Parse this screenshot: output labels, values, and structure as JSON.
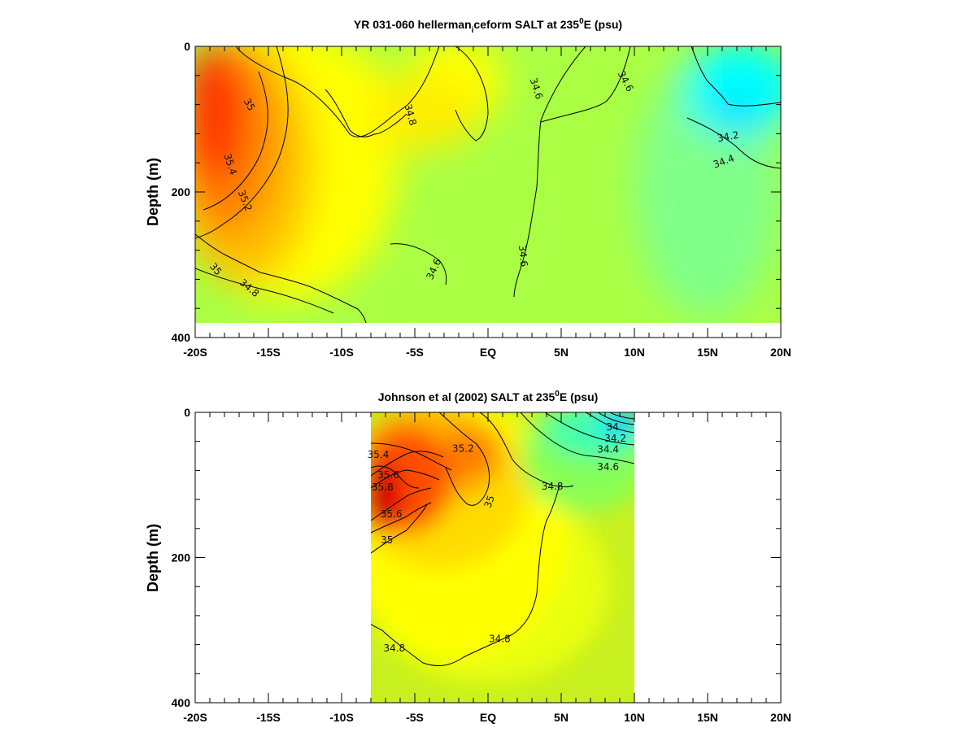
{
  "chart_data": [
    {
      "type": "heatmap",
      "title_main": "YR 031-060 hellerman",
      "title_sub": "i",
      "title_tail": "ceform SALT at 235",
      "title_sup": "0",
      "title_end": "E (psu)",
      "ylabel": "Depth (m)",
      "xlim": [
        -20,
        20
      ],
      "ylim": [
        0,
        400
      ],
      "x_ticks": [
        -20,
        -15,
        -10,
        -5,
        0,
        5,
        10,
        15,
        20
      ],
      "x_tick_labels": [
        "-20S",
        "-15S",
        "-10S",
        "-5S",
        "EQ",
        "5N",
        "10N",
        "15N",
        "20N"
      ],
      "y_ticks": [
        0,
        200,
        400
      ],
      "y_tick_labels": [
        "0",
        "200",
        "400"
      ],
      "data_extent": {
        "x": [
          -20,
          20
        ],
        "depth": [
          0,
          380
        ]
      },
      "color_range": [
        34.0,
        35.8
      ],
      "colors": [
        "#00b4ff",
        "#00ffff",
        "#66ff99",
        "#b0ff40",
        "#ffff00",
        "#ffc800",
        "#ff8000",
        "#ff2000",
        "#d00000"
      ],
      "contour_labels": [
        {
          "x": -16.3,
          "y": 80,
          "text": "35",
          "rot": 60
        },
        {
          "x": -17.6,
          "y": 162,
          "text": "35.4",
          "rot": 72
        },
        {
          "x": -16.6,
          "y": 212,
          "text": "35.2",
          "rot": 68
        },
        {
          "x": -18.6,
          "y": 306,
          "text": "35",
          "rot": 50
        },
        {
          "x": -16.3,
          "y": 332,
          "text": "34.8",
          "rot": 40
        },
        {
          "x": -5.3,
          "y": 94,
          "text": "34.8",
          "rot": 75
        },
        {
          "x": 3.3,
          "y": 58,
          "text": "34.6",
          "rot": 72
        },
        {
          "x": 9.4,
          "y": 48,
          "text": "34.6",
          "rot": 62
        },
        {
          "x": -3.7,
          "y": 306,
          "text": "34.6",
          "rot": -65
        },
        {
          "x": 2.4,
          "y": 288,
          "text": "34.6",
          "rot": 85
        },
        {
          "x": 16.4,
          "y": 124,
          "text": "34.2",
          "rot": -10
        },
        {
          "x": 16.1,
          "y": 158,
          "text": "34.4",
          "rot": -20
        }
      ]
    },
    {
      "type": "heatmap",
      "title_main": "Johnson et al (2002) SALT at 235",
      "title_sup": "0",
      "title_end": "E (psu)",
      "ylabel": "Depth (m)",
      "xlim": [
        -20,
        20
      ],
      "ylim": [
        0,
        400
      ],
      "x_ticks": [
        -20,
        -15,
        -10,
        -5,
        0,
        5,
        10,
        15,
        20
      ],
      "x_tick_labels": [
        "-20S",
        "-15S",
        "-10S",
        "-5S",
        "EQ",
        "5N",
        "10N",
        "15N",
        "20N"
      ],
      "y_ticks": [
        0,
        200,
        400
      ],
      "y_tick_labels": [
        "0",
        "200",
        "400"
      ],
      "data_extent": {
        "x": [
          -8,
          10
        ],
        "depth": [
          0,
          400
        ]
      },
      "color_range": [
        34.0,
        35.8
      ],
      "colors": [
        "#00b4ff",
        "#00ffff",
        "#66ff99",
        "#b0ff40",
        "#ffff00",
        "#ffc800",
        "#ff8000",
        "#ff2000",
        "#d00000"
      ],
      "contour_labels": [
        {
          "x": -7.5,
          "y": 58,
          "text": "35.4",
          "rot": 0
        },
        {
          "x": -1.7,
          "y": 50,
          "text": "35.2",
          "rot": 0
        },
        {
          "x": -6.8,
          "y": 86,
          "text": "35.6",
          "rot": 0
        },
        {
          "x": -7.2,
          "y": 103,
          "text": "35.8",
          "rot": 0
        },
        {
          "x": -6.6,
          "y": 140,
          "text": "35.6",
          "rot": 0
        },
        {
          "x": -6.9,
          "y": 176,
          "text": "35",
          "rot": 0
        },
        {
          "x": 0.1,
          "y": 123,
          "text": "35",
          "rot": -70
        },
        {
          "x": 4.4,
          "y": 102,
          "text": "34.8",
          "rot": 0
        },
        {
          "x": 8.5,
          "y": 20,
          "text": "34",
          "rot": 0
        },
        {
          "x": 8.7,
          "y": 36,
          "text": "34.2",
          "rot": 0
        },
        {
          "x": 8.2,
          "y": 51,
          "text": "34.4",
          "rot": 0
        },
        {
          "x": 8.2,
          "y": 75,
          "text": "34.6",
          "rot": 0
        },
        {
          "x": -6.4,
          "y": 325,
          "text": "34.8",
          "rot": 0
        },
        {
          "x": 0.8,
          "y": 312,
          "text": "34.8",
          "rot": 0
        }
      ]
    }
  ]
}
